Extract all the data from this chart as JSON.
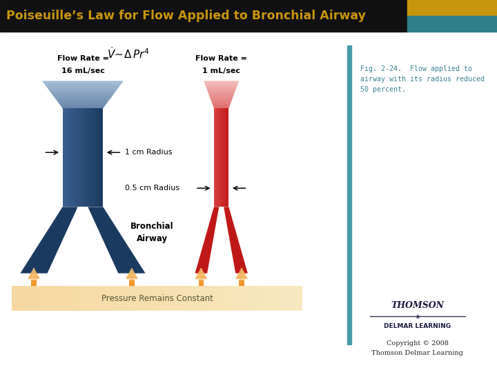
{
  "title": "Poiseuille’s Law for Flow Applied to Bronchial Airway",
  "title_bg": "#111111",
  "title_color": "#c8960c",
  "title_bar_gold": "#c8960c",
  "title_bar_teal": "#2e7f8a",
  "fig_bg": "#ffffff",
  "formula": "$\\dot{V}\\sim\\Delta\\,Pr^4$",
  "left_label_line1": "Flow Rate =",
  "left_label_line2": "16 mL/sec",
  "right_label_line1": "Flow Rate =",
  "right_label_line2": "1 mL/sec",
  "bronchial_label": "Bronchial\nAirway",
  "pressure_label": "Pressure Remains Constant",
  "copyright_line1": "Copyright © 2008",
  "copyright_line2": "Thomson Delmar Learning",
  "fig_caption": "Fig. 2-24.  Flow applied to\nairway with its radius reduced\n50 percent.",
  "left_blue_dark": "#1b3a60",
  "left_blue_mid": "#3a6090",
  "left_blue_light": "#8aaac8",
  "right_red_dark": "#c01818",
  "right_red_mid": "#d84040",
  "right_red_light": "#f0a8a8",
  "orange_dark": "#e06000",
  "orange_mid": "#f09020",
  "orange_light": "#f8d080",
  "base_color": "#f5d8a0",
  "teal_line": "#4a9aaa",
  "caption_color": "#3a8090",
  "arrow_color": "#111111"
}
